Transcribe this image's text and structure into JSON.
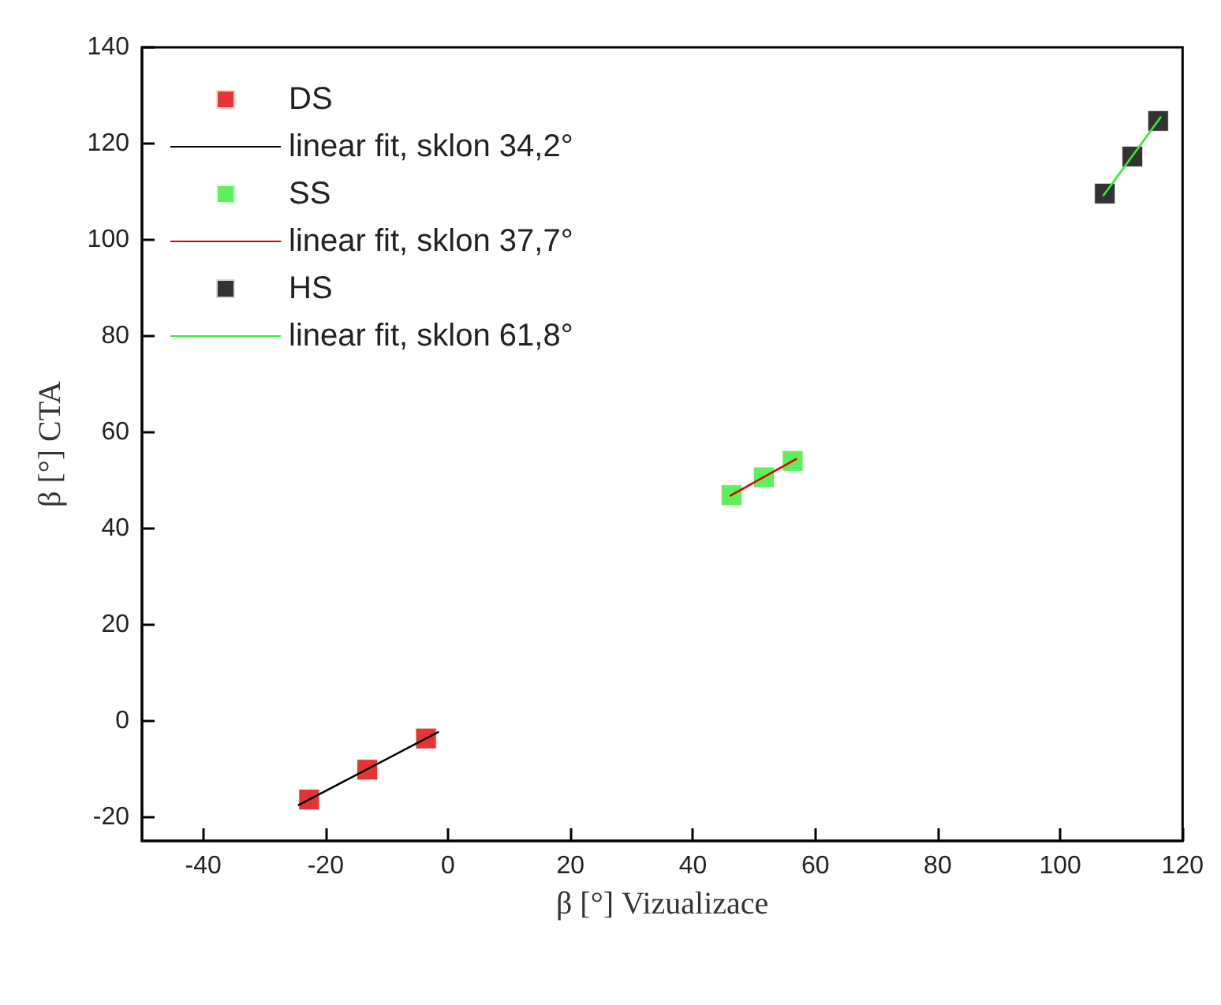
{
  "chart_data": {
    "type": "scatter",
    "xlabel": "β [°] Vizualizace",
    "ylabel": "β [°] CTA",
    "xlim": [
      -50,
      120
    ],
    "xticks": [
      -40,
      -20,
      0,
      20,
      40,
      60,
      80,
      100,
      120
    ],
    "ylim": [
      -25,
      140
    ],
    "yticks": [
      -20,
      0,
      20,
      40,
      60,
      80,
      100,
      120,
      140
    ],
    "marker": "square",
    "legend": "top left",
    "grid": false,
    "series": [
      {
        "name": "DS",
        "color": "#e00000",
        "x": [
          -22.7,
          -13.2,
          -3.6
        ],
        "values": [
          -16.4,
          -10.2,
          -3.7
        ]
      },
      {
        "name": "linear fit, sklon 34,2°",
        "type": "line",
        "marker": "none",
        "color": "#000000",
        "x": [
          -24.5,
          -1.5
        ],
        "values": [
          -17.6,
          -2.3
        ]
      },
      {
        "name": "SS",
        "color": "#33ee33",
        "x": [
          46.3,
          51.6,
          56.3
        ],
        "values": [
          46.9,
          50.6,
          54.0
        ]
      },
      {
        "name": "linear fit, sklon 37,7°",
        "type": "line",
        "marker": "none",
        "color": "#e00000",
        "x": [
          46,
          57
        ],
        "values": [
          46.7,
          54.5
        ]
      },
      {
        "name": "HS",
        "color": "#000000",
        "x": [
          107.3,
          111.8,
          116.0
        ],
        "values": [
          109.6,
          117.3,
          124.7
        ]
      },
      {
        "name": "linear fit, sklon 61,8°",
        "type": "line",
        "marker": "none",
        "color": "#33ee33",
        "x": [
          107,
          116.5
        ],
        "values": [
          109.1,
          125.6
        ]
      }
    ]
  }
}
